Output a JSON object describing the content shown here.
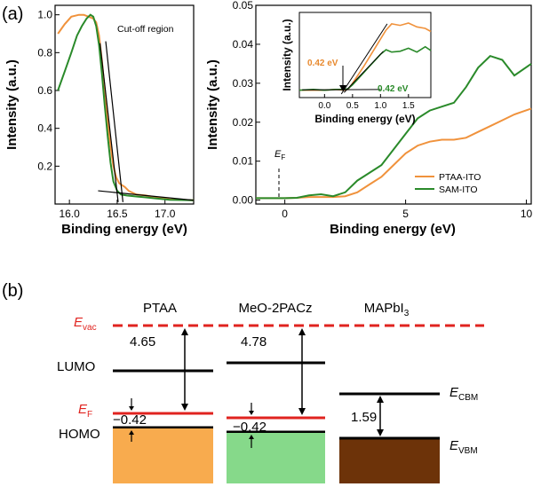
{
  "panels": {
    "a_label": "(a)",
    "b_label": "(b)"
  },
  "chart_data": [
    {
      "type": "line",
      "panel": "(a) left",
      "xlabel": "Binding energy (eV)",
      "ylabel": "Intensity (a.u.)",
      "xlim": [
        15.85,
        17.3
      ],
      "ylim": [
        0.0,
        1.05
      ],
      "xticks": [
        "16.0",
        "16.5",
        "17.0"
      ],
      "yticks": [
        "0.2",
        "0.4",
        "0.6",
        "0.8",
        "1.0"
      ],
      "annotation": "Cut-off region",
      "series": [
        {
          "color": "#f0923c",
          "x": [
            15.88,
            15.95,
            16.02,
            16.1,
            16.15,
            16.2,
            16.25,
            16.28,
            16.31,
            16.34,
            16.37,
            16.4,
            16.43,
            16.46,
            16.49,
            16.52,
            16.55,
            16.58,
            16.62,
            16.7,
            16.8,
            16.9,
            17.05,
            17.3
          ],
          "y": [
            0.9,
            0.95,
            0.99,
            1.0,
            1.0,
            0.99,
            0.98,
            0.96,
            0.89,
            0.76,
            0.6,
            0.44,
            0.31,
            0.2,
            0.14,
            0.11,
            0.1,
            0.09,
            0.07,
            0.05,
            0.045,
            0.035,
            0.025,
            0.02
          ]
        },
        {
          "color": "#2a8a2a",
          "x": [
            15.88,
            15.95,
            16.02,
            16.08,
            16.13,
            16.18,
            16.22,
            16.25,
            16.28,
            16.31,
            16.34,
            16.37,
            16.4,
            16.43,
            16.46,
            16.5,
            16.54,
            16.6,
            16.7,
            16.8,
            16.9,
            17.05,
            17.3
          ],
          "y": [
            0.6,
            0.7,
            0.8,
            0.89,
            0.94,
            0.98,
            1.0,
            0.99,
            0.94,
            0.84,
            0.69,
            0.52,
            0.36,
            0.22,
            0.12,
            0.07,
            0.05,
            0.045,
            0.04,
            0.035,
            0.03,
            0.022,
            0.02
          ]
        }
      ],
      "fit_lines": [
        {
          "x": [
            16.32,
            16.51
          ],
          "y": [
            0.85,
            0.01
          ]
        },
        {
          "x": [
            16.38,
            16.56
          ],
          "y": [
            0.86,
            0.01
          ]
        },
        {
          "x": [
            16.3,
            17.3
          ],
          "y": [
            0.07,
            0.02
          ]
        }
      ]
    },
    {
      "type": "line",
      "panel": "(a) right",
      "xlabel": "Binding energy (eV)",
      "ylabel": "Intensity (a.u.)",
      "xlim": [
        -1.2,
        10.2
      ],
      "ylim": [
        -0.001,
        0.05
      ],
      "xticks": [
        "0",
        "5",
        "10"
      ],
      "yticks": [
        "0.00",
        "0.01",
        "0.02",
        "0.03",
        "0.04",
        "0.05"
      ],
      "ef_label": "E",
      "ef_sub": "F",
      "legend": [
        {
          "label": "PTAA-ITO",
          "color": "#f0923c"
        },
        {
          "label": "SAM-ITO",
          "color": "#2a8a2a"
        }
      ],
      "legend_position": "lower-right",
      "series": [
        {
          "name": "PTAA-ITO",
          "color": "#f0923c",
          "x": [
            -1.2,
            0,
            0.5,
            1,
            1.5,
            2,
            2.5,
            3,
            3.5,
            4,
            4.5,
            5,
            5.5,
            6,
            6.5,
            7,
            7.5,
            8,
            8.5,
            9,
            9.5,
            10.2
          ],
          "y": [
            0.0005,
            0.0005,
            0.0006,
            0.0008,
            0.0008,
            0.0008,
            0.001,
            0.002,
            0.004,
            0.006,
            0.009,
            0.012,
            0.014,
            0.015,
            0.0155,
            0.0155,
            0.016,
            0.0175,
            0.019,
            0.0205,
            0.022,
            0.0235
          ]
        },
        {
          "name": "SAM-ITO",
          "color": "#2a8a2a",
          "x": [
            -1.2,
            0,
            0.5,
            1,
            1.5,
            2,
            2.5,
            3,
            3.5,
            4,
            4.5,
            5,
            5.5,
            6,
            6.5,
            7,
            7.5,
            8,
            8.5,
            9,
            9.5,
            10.2
          ],
          "y": [
            0.0005,
            0.0005,
            0.0006,
            0.0012,
            0.0015,
            0.001,
            0.002,
            0.005,
            0.007,
            0.009,
            0.013,
            0.017,
            0.021,
            0.023,
            0.024,
            0.025,
            0.029,
            0.034,
            0.037,
            0.036,
            0.032,
            0.035
          ]
        }
      ],
      "inset": {
        "xlabel": "Binding energy (eV)",
        "ylabel": "Intensity (a.u.)",
        "xlim": [
          -0.45,
          1.9
        ],
        "xticks": [
          "0.0",
          "0.5",
          "1.0",
          "1.5"
        ],
        "annotations": [
          {
            "text": "0.42 eV",
            "color": "#e8892e"
          },
          {
            "text": "0.42 eV",
            "color": "#2a8a2a"
          }
        ],
        "series": [
          {
            "color": "#f0923c",
            "x": [
              -0.45,
              -0.2,
              0.0,
              0.2,
              0.35,
              0.42,
              0.5,
              0.6,
              0.7,
              0.8,
              0.9,
              1.0,
              1.1,
              1.2,
              1.35,
              1.5,
              1.65,
              1.8,
              1.9
            ],
            "y": [
              0.05,
              0.05,
              0.05,
              0.06,
              0.05,
              0.06,
              0.14,
              0.25,
              0.36,
              0.48,
              0.6,
              0.72,
              0.84,
              0.92,
              0.9,
              0.93,
              0.88,
              0.86,
              0.82
            ]
          },
          {
            "color": "#2a8a2a",
            "x": [
              -0.45,
              -0.2,
              0.0,
              0.2,
              0.35,
              0.42,
              0.5,
              0.6,
              0.7,
              0.8,
              0.9,
              1.0,
              1.1,
              1.2,
              1.35,
              1.5,
              1.65,
              1.8,
              1.9
            ],
            "y": [
              0.05,
              0.06,
              0.05,
              0.06,
              0.06,
              0.07,
              0.12,
              0.2,
              0.28,
              0.36,
              0.44,
              0.52,
              0.58,
              0.55,
              0.56,
              0.6,
              0.55,
              0.62,
              0.57
            ]
          }
        ]
      }
    },
    {
      "type": "diagram",
      "panel": "(b)",
      "evac_label": "E",
      "evac_sub": "vac",
      "ef_label": "E",
      "ef_sub": "F",
      "lumo_label": "LUMO",
      "homo_label": "HOMO",
      "ecbm_label": "E",
      "ecbm_sub": "CBM",
      "evbm_label": "E",
      "evbm_sub": "VBM",
      "columns": [
        {
          "name": "PTAA",
          "wf_value": "4.65",
          "offset_value": "−0.42",
          "fill": "#f8ab4e"
        },
        {
          "name": "MeO-2PACz",
          "wf_value": "4.78",
          "offset_value": "−0.42",
          "fill": "#86d98a"
        },
        {
          "name": "MAPbI",
          "name_sub": "3",
          "gap_value": "1.59",
          "fill": "#6d3309"
        }
      ],
      "colors": {
        "vacuum": "#e0231f",
        "fermi": "#e0231f",
        "line": "#000000"
      }
    }
  ]
}
